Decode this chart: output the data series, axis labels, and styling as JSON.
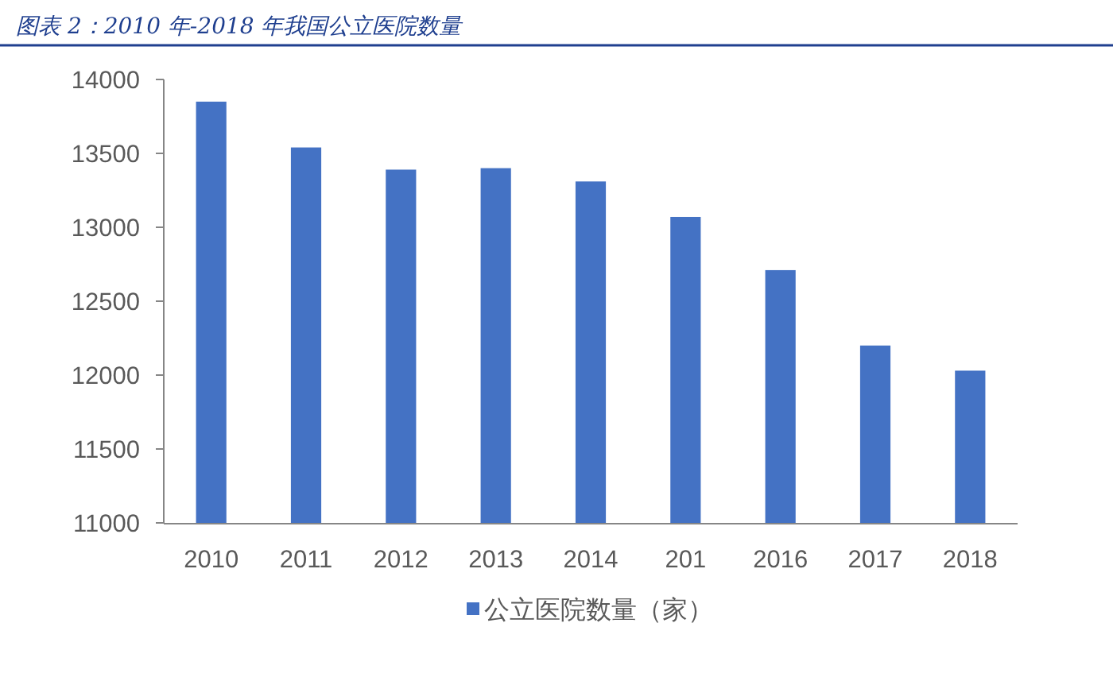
{
  "chart_data": {
    "type": "bar",
    "title": "图表 2：2010 年-2018 年我国公立医院数量",
    "categories": [
      "2010",
      "2011",
      "2012",
      "2013",
      "2014",
      "201",
      "2016",
      "2017",
      "2018"
    ],
    "series": [
      {
        "name": "公立医院数量（家）",
        "color": "#4472c4",
        "values": [
          13850,
          13540,
          13390,
          13400,
          13310,
          13070,
          12710,
          12200,
          12030
        ]
      }
    ],
    "ylim": [
      11000,
      14000
    ],
    "yticks": [
      11000,
      11500,
      12000,
      12500,
      13000,
      13500,
      14000
    ],
    "grid": false,
    "legend": "bottom"
  }
}
